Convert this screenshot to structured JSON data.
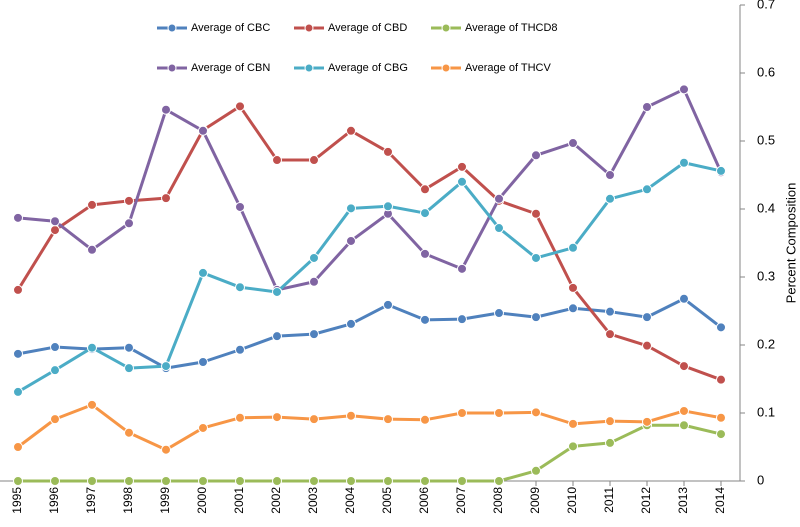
{
  "chart_data": {
    "type": "line",
    "y_label": "Percent Composition",
    "categories": [
      "1995",
      "1996",
      "1997",
      "1998",
      "1999",
      "2000",
      "2001",
      "2002",
      "2003",
      "2004",
      "2005",
      "2006",
      "2007",
      "2008",
      "2009",
      "2010",
      "2011",
      "2012",
      "2013",
      "2014"
    ],
    "series": [
      {
        "name": "Average of CBC",
        "color": "#4f81bd",
        "values": [
          0.187,
          0.197,
          0.194,
          0.196,
          0.166,
          0.175,
          0.193,
          0.213,
          0.216,
          0.231,
          0.259,
          0.237,
          0.238,
          0.247,
          0.241,
          0.254,
          0.249,
          0.241,
          0.268,
          0.226
        ]
      },
      {
        "name": "Average of CBD",
        "color": "#c0504d",
        "values": [
          0.281,
          0.369,
          0.406,
          0.412,
          0.416,
          0.516,
          0.551,
          0.472,
          0.472,
          0.515,
          0.484,
          0.429,
          0.462,
          0.412,
          0.393,
          0.284,
          0.216,
          0.199,
          0.169,
          0.149
        ]
      },
      {
        "name": "Average of THCD8",
        "color": "#9bbb59",
        "values": [
          0,
          0,
          0,
          0,
          0,
          0,
          0,
          0,
          0,
          0,
          0,
          0,
          0,
          0,
          0.015,
          0.051,
          0.056,
          0.082,
          0.082,
          0.069
        ]
      },
      {
        "name": "Average of CBN",
        "color": "#8064a2",
        "values": [
          0.387,
          0.382,
          0.34,
          0.379,
          0.546,
          0.515,
          0.403,
          0.281,
          0.293,
          0.353,
          0.393,
          0.334,
          0.312,
          0.415,
          0.479,
          0.497,
          0.45,
          0.55,
          0.576,
          0.454
        ]
      },
      {
        "name": "Average of CBG",
        "color": "#4bacc6",
        "values": [
          0.131,
          0.163,
          0.196,
          0.166,
          0.169,
          0.306,
          0.285,
          0.278,
          0.328,
          0.401,
          0.404,
          0.394,
          0.44,
          0.372,
          0.328,
          0.343,
          0.415,
          0.429,
          0.468,
          0.456
        ]
      },
      {
        "name": "Average of THCV",
        "color": "#f79646",
        "values": [
          0.05,
          0.091,
          0.112,
          0.071,
          0.046,
          0.078,
          0.093,
          0.094,
          0.091,
          0.096,
          0.091,
          0.09,
          0.1,
          0.1,
          0.101,
          0.084,
          0.088,
          0.087,
          0.103,
          0.093
        ]
      }
    ],
    "ylim": [
      0,
      0.7
    ],
    "yticks": [
      0,
      0.1,
      0.2,
      0.3,
      0.4,
      0.5,
      0.6,
      0.7
    ],
    "grid": false
  }
}
